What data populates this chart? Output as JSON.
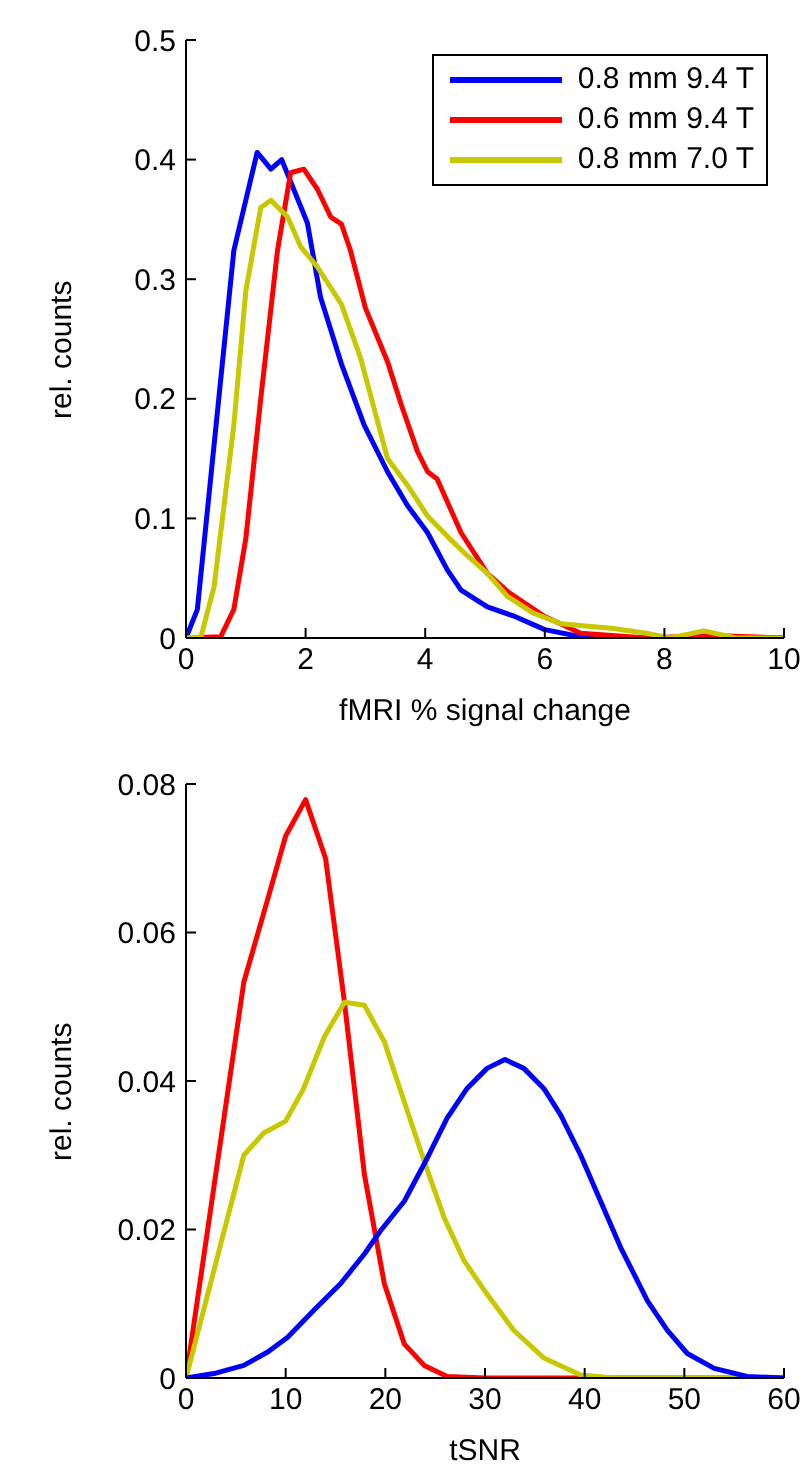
{
  "chart_data": [
    {
      "type": "line",
      "xlabel": "fMRI % signal change",
      "ylabel": "rel. counts",
      "xlim": [
        0,
        10
      ],
      "xticks": [
        0,
        2,
        4,
        6,
        8,
        10
      ],
      "ylim": [
        0,
        0.5
      ],
      "yticks": [
        0,
        0.1,
        0.2,
        0.3,
        0.4,
        0.5
      ],
      "legend": "top right",
      "marker": "none",
      "line_style": "solid",
      "series": [
        {
          "name": "0.8 mm 9.4 T",
          "color": "#0000ff",
          "x": [
            0,
            0.19,
            0.8,
            1.19,
            1.42,
            1.6,
            2.03,
            2.25,
            2.6,
            2.98,
            3.37,
            3.7,
            4.04,
            4.37,
            4.6,
            5.04,
            5.5,
            6.0,
            6.6,
            8,
            10
          ],
          "values": [
            0,
            0.024,
            0.324,
            0.406,
            0.392,
            0.4,
            0.347,
            0.285,
            0.229,
            0.178,
            0.139,
            0.111,
            0.088,
            0.057,
            0.04,
            0.026,
            0.018,
            0.007,
            0.001,
            0,
            0
          ]
        },
        {
          "name": "0.6 mm 9.4 T",
          "color": "#ff0000",
          "x": [
            0,
            0.58,
            0.8,
            1.0,
            1.25,
            1.53,
            1.75,
            1.97,
            2.2,
            2.42,
            2.6,
            2.75,
            3.0,
            3.37,
            3.6,
            3.87,
            4.04,
            4.2,
            4.6,
            5.04,
            5.4,
            6.0,
            6.6,
            7.7,
            8.8,
            10
          ],
          "values": [
            0,
            0.001,
            0.024,
            0.083,
            0.2,
            0.324,
            0.389,
            0.392,
            0.375,
            0.352,
            0.346,
            0.324,
            0.276,
            0.231,
            0.195,
            0.156,
            0.139,
            0.133,
            0.088,
            0.054,
            0.038,
            0.018,
            0.004,
            0,
            0.002,
            0
          ]
        },
        {
          "name": "0.8 mm 7.0 T",
          "color": "#c8c800",
          "x": [
            0,
            0.25,
            0.47,
            0.8,
            1.0,
            1.25,
            1.42,
            1.7,
            1.92,
            2.2,
            2.6,
            2.92,
            3.37,
            3.7,
            4.04,
            4.37,
            4.7,
            5.04,
            5.37,
            5.8,
            6.27,
            7.15,
            7.7,
            8.1,
            8.66,
            9.2,
            10
          ],
          "values": [
            0,
            0.001,
            0.043,
            0.178,
            0.29,
            0.36,
            0.366,
            0.352,
            0.327,
            0.31,
            0.279,
            0.234,
            0.15,
            0.128,
            0.102,
            0.085,
            0.069,
            0.054,
            0.035,
            0.021,
            0.012,
            0.008,
            0.004,
            0,
            0.006,
            0,
            0
          ]
        }
      ]
    },
    {
      "type": "line",
      "xlabel": "tSNR",
      "ylabel": "rel. counts",
      "xlim": [
        0,
        60
      ],
      "xticks": [
        0,
        10,
        20,
        30,
        40,
        50,
        60
      ],
      "ylim": [
        0,
        0.08
      ],
      "yticks": [
        0,
        0.02,
        0.04,
        0.06,
        0.08
      ],
      "marker": "none",
      "line_style": "solid",
      "series": [
        {
          "color": "#ff0000",
          "x": [
            0,
            5.8,
            8.2,
            10,
            12,
            14,
            15.9,
            17.9,
            19.9,
            21.9,
            23.9,
            26.2,
            30,
            60
          ],
          "values": [
            0,
            0.0533,
            0.0645,
            0.073,
            0.0779,
            0.07,
            0.0506,
            0.0274,
            0.0127,
            0.0046,
            0.0017,
            0.0002,
            0,
            0
          ]
        },
        {
          "color": "#c8c800",
          "x": [
            0,
            5.8,
            7.8,
            10,
            11.8,
            13.9,
            15.9,
            17.9,
            19.9,
            21.9,
            23.9,
            25.9,
            27.9,
            30.2,
            32.9,
            35.9,
            39.6,
            43,
            60
          ],
          "values": [
            0,
            0.03,
            0.033,
            0.0346,
            0.039,
            0.046,
            0.0506,
            0.0502,
            0.0453,
            0.0372,
            0.0292,
            0.0216,
            0.0158,
            0.0113,
            0.0064,
            0.0027,
            0.0004,
            0,
            0
          ]
        },
        {
          "color": "#0000ff",
          "x": [
            0,
            2.8,
            5.8,
            8.2,
            10.2,
            12.8,
            15.5,
            17.9,
            19.5,
            21.9,
            24.2,
            26.2,
            28.2,
            30.2,
            32,
            33.9,
            35.9,
            37.6,
            39.6,
            41.6,
            43.6,
            46.3,
            48.3,
            50.3,
            53,
            56.3,
            60
          ],
          "values": [
            0,
            0.0006,
            0.0017,
            0.0035,
            0.0055,
            0.0091,
            0.0127,
            0.0167,
            0.0198,
            0.0238,
            0.0296,
            0.035,
            0.039,
            0.0417,
            0.0429,
            0.0417,
            0.039,
            0.0354,
            0.03,
            0.0238,
            0.0176,
            0.0104,
            0.0064,
            0.0033,
            0.0013,
            0.0002,
            0
          ]
        }
      ]
    }
  ]
}
